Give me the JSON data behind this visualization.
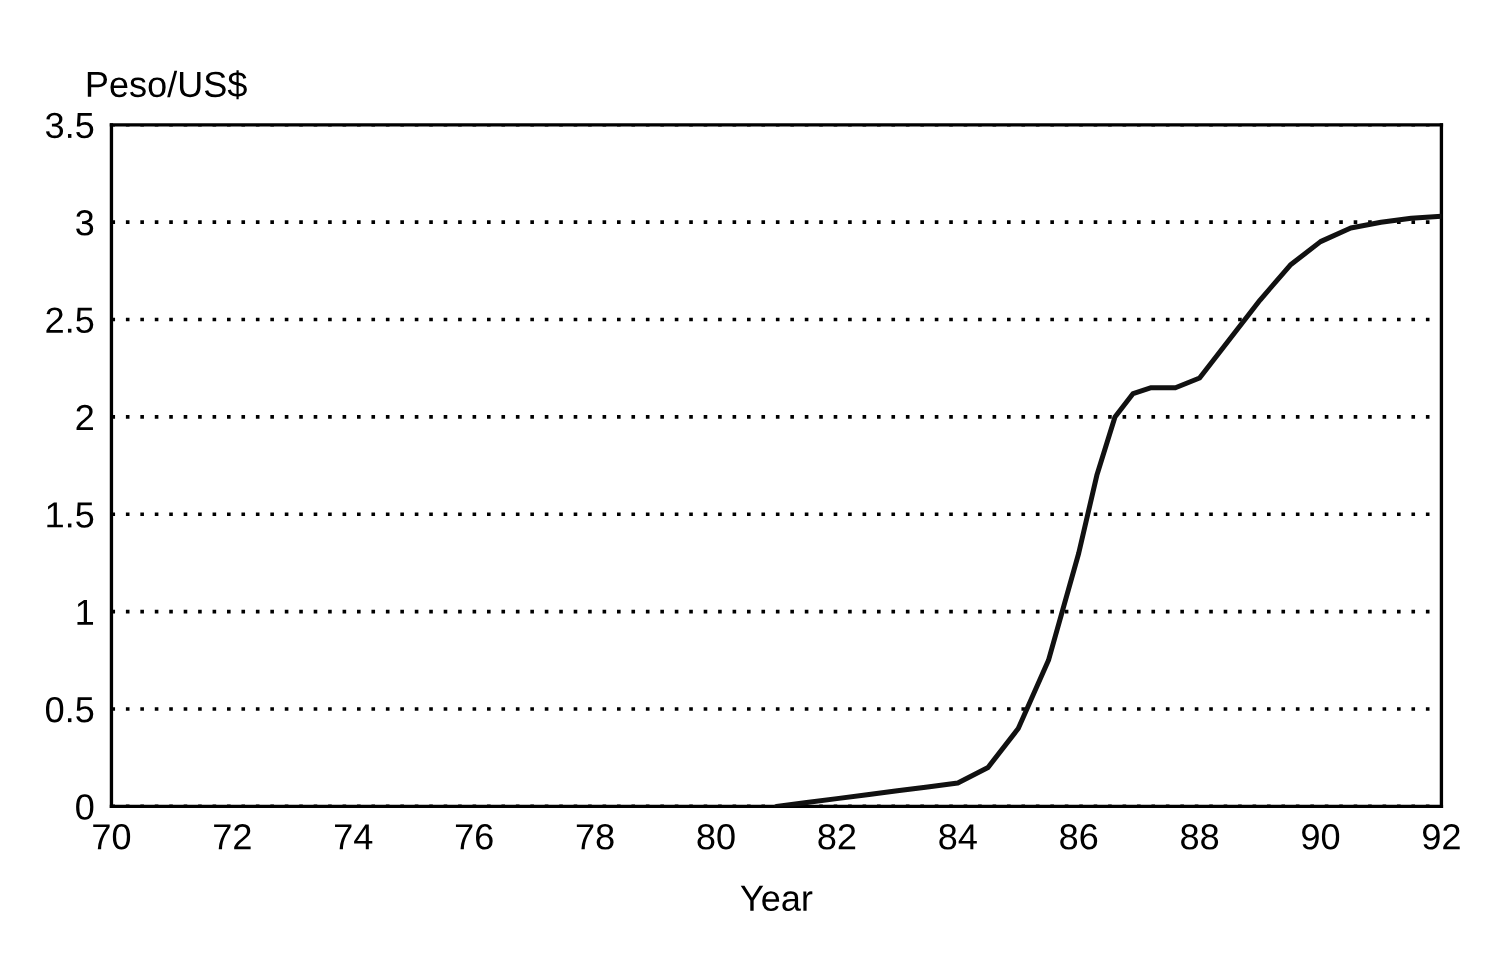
{
  "chart_data": {
    "type": "line",
    "xlabel": "Year",
    "ylabel": "Peso/US$",
    "series": [
      {
        "color": "#111111",
        "x": [
          81,
          81.5,
          82,
          82.5,
          83,
          83.5,
          84,
          84.5,
          85,
          85.5,
          86,
          86.3,
          86.6,
          86.9,
          87.2,
          87.6,
          88,
          88.5,
          89,
          89.5,
          90,
          90.5,
          91,
          91.5,
          92
        ],
        "values": [
          0,
          0.02,
          0.04,
          0.06,
          0.08,
          0.1,
          0.12,
          0.2,
          0.4,
          0.75,
          1.3,
          1.7,
          2.0,
          2.12,
          2.15,
          2.15,
          2.2,
          2.4,
          2.6,
          2.78,
          2.9,
          2.97,
          3.0,
          3.02,
          3.03
        ]
      }
    ],
    "xlim": [
      70,
      92
    ],
    "xticks": [
      70,
      72,
      74,
      76,
      78,
      80,
      82,
      84,
      86,
      88,
      90,
      92
    ],
    "ylim": [
      0,
      3.5
    ],
    "yticks": [
      0,
      0.5,
      1,
      1.5,
      2,
      2.5,
      3,
      3.5
    ],
    "grid": "y",
    "line_style": "solid",
    "marker": "none",
    "legend": false
  }
}
